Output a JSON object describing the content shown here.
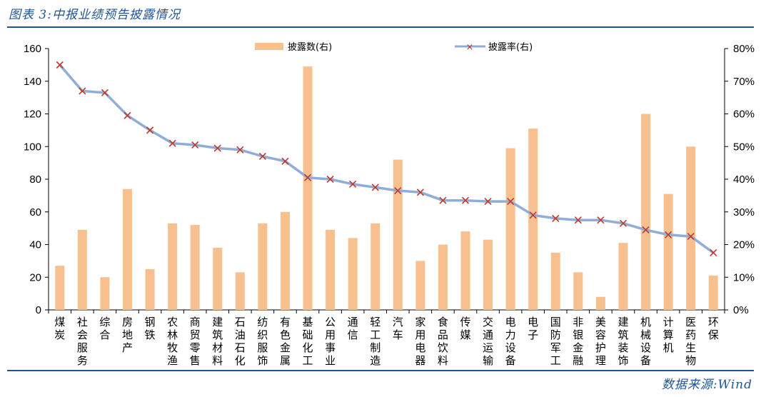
{
  "header": {
    "title": "图表 3:中报业绩预告披露情况"
  },
  "footer": {
    "source": "数据来源:Wind"
  },
  "colors": {
    "bar": "#f8c08f",
    "line": "#8fadd8",
    "marker": "#c0392b",
    "rule": "#1f5597"
  },
  "chart_data": {
    "type": "bar+line",
    "categories": [
      "煤炭",
      "社会服务",
      "综合",
      "房地产",
      "钢铁",
      "农林牧渔",
      "商贸零售",
      "建筑材料",
      "石油石化",
      "纺织服饰",
      "有色金属",
      "基础化工",
      "公用事业",
      "通信",
      "轻工制造",
      "汽车",
      "家用电器",
      "食品饮料",
      "传媒",
      "交通运输",
      "电力设备",
      "电子",
      "国防军工",
      "非银金融",
      "美容护理",
      "建筑装饰",
      "机械设备",
      "计算机",
      "医药生物",
      "环保"
    ],
    "series": [
      {
        "name": "披露数(右)",
        "kind": "bar",
        "axis": "left",
        "values": [
          27,
          49,
          20,
          74,
          25,
          53,
          52,
          38,
          23,
          53,
          60,
          149,
          49,
          44,
          53,
          92,
          30,
          40,
          48,
          43,
          99,
          111,
          35,
          23,
          8,
          41,
          120,
          71,
          100,
          21
        ]
      },
      {
        "name": "披露率(右)",
        "kind": "line",
        "axis": "right",
        "values": [
          75,
          67,
          66.5,
          59.5,
          55,
          51,
          50.5,
          49.5,
          49,
          47,
          45.5,
          40.5,
          40,
          38.5,
          37.5,
          36.5,
          36,
          33.5,
          33.5,
          33.2,
          33.2,
          29,
          28,
          27.5,
          27.5,
          26.5,
          24.5,
          23,
          22.5,
          17.5
        ]
      }
    ],
    "left_axis": {
      "min": 0,
      "max": 160,
      "ticks": [
        "0",
        "20",
        "40",
        "60",
        "80",
        "100",
        "120",
        "140",
        "160"
      ]
    },
    "right_axis": {
      "min": 0,
      "max": 80,
      "ticks": [
        "0%",
        "10%",
        "20%",
        "30%",
        "40%",
        "50%",
        "60%",
        "70%",
        "80%"
      ]
    },
    "legend": {
      "position": "top-center",
      "bar_label": "披露数(右)",
      "line_label": "披露率(右)"
    }
  }
}
